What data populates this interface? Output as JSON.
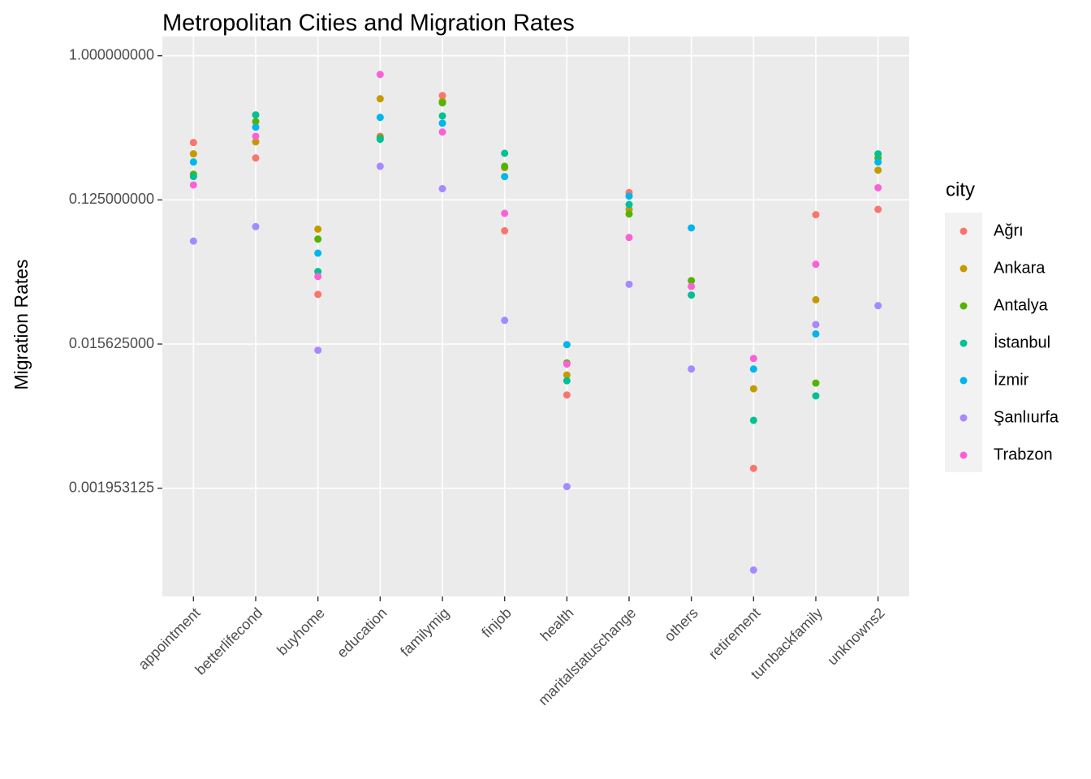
{
  "chart_data": {
    "type": "scatter",
    "title": "Metropolitan Cities and Migration Rates",
    "y_label": "Migration Rates",
    "legend_title": "city",
    "legend_position": "right",
    "yscale": "log2",
    "grid": true,
    "categories": [
      "appointment",
      "betterlifecond",
      "buyhome",
      "education",
      "familymig",
      "finjob",
      "health",
      "maritalstatuschange",
      "others",
      "retirement",
      "turnbackfamily",
      "unknowns2"
    ],
    "ylim": [
      0.00041,
      1.32
    ],
    "yticks": [
      {
        "value": 0.001953125,
        "label": "0.001953125"
      },
      {
        "value": 0.015625,
        "label": "0.015625000"
      },
      {
        "value": 0.125,
        "label": "0.125000000"
      },
      {
        "value": 1,
        "label": "1.000000000"
      }
    ],
    "series": [
      {
        "name": "Ağrı",
        "color": "#F8766D",
        "values": [
          0.286,
          0.229,
          0.032,
          0.313,
          0.563,
          0.08,
          0.0075,
          0.139,
          null,
          0.0026,
          0.101,
          0.109
        ]
      },
      {
        "name": "Ankara",
        "color": "#C49A00",
        "values": [
          0.243,
          0.289,
          0.082,
          0.538,
          0.519,
          0.199,
          0.01,
          0.109,
          null,
          0.0082,
          0.0296,
          0.192
        ]
      },
      {
        "name": "Antalya",
        "color": "#53B400",
        "values": [
          0.181,
          0.387,
          0.071,
          0.306,
          0.507,
          0.203,
          0.0119,
          0.102,
          0.039,
          null,
          0.0089,
          0.229
        ]
      },
      {
        "name": "İstanbul",
        "color": "#00C094",
        "values": [
          0.175,
          0.426,
          0.0445,
          0.3,
          0.42,
          0.245,
          0.0092,
          0.117,
          0.0317,
          0.0052,
          0.0074,
          0.243
        ]
      },
      {
        "name": "İzmir",
        "color": "#00B6EB",
        "values": [
          0.216,
          0.357,
          0.058,
          0.411,
          0.378,
          0.175,
          0.0155,
          0.132,
          0.0835,
          0.0109,
          0.0181,
          0.216
        ]
      },
      {
        "name": "Şanlıurfa",
        "color": "#A58AFF",
        "values": [
          0.069,
          0.085,
          0.0143,
          0.203,
          0.147,
          0.022,
          0.002,
          0.037,
          0.0109,
          0.0006,
          0.0207,
          0.0272
        ]
      },
      {
        "name": "Trabzon",
        "color": "#FB61D7",
        "values": [
          0.155,
          0.313,
          0.0414,
          0.764,
          0.333,
          0.103,
          0.0117,
          0.0727,
          0.0359,
          0.0127,
          0.0494,
          0.149
        ]
      }
    ]
  }
}
